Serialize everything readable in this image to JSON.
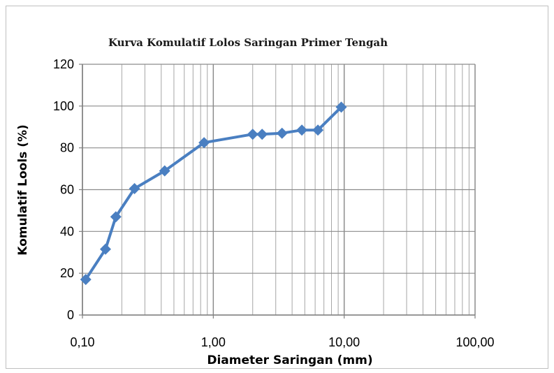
{
  "chart_data": {
    "type": "line",
    "title": "Kurva Komulatif Lolos Saringan Primer Tengah",
    "xlabel": "Diameter Saringan  (mm)",
    "ylabel": "Komulatif Lools (%)",
    "x_scale": "log",
    "xlim": [
      0.1,
      100
    ],
    "ylim": [
      0,
      120
    ],
    "x_ticks": [
      0.1,
      1,
      10,
      100
    ],
    "x_tick_labels": [
      "0,10",
      "1,00",
      "10,00",
      "100,00"
    ],
    "y_ticks": [
      0,
      20,
      40,
      60,
      80,
      100,
      120
    ],
    "y_tick_labels": [
      "0",
      "20",
      "40",
      "60",
      "80",
      "100",
      "120"
    ],
    "grid": true,
    "legend": "none",
    "series": [
      {
        "color": "#4a7fc1",
        "marker": "diamond",
        "x": [
          0.106,
          0.15,
          0.18,
          0.25,
          0.425,
          0.85,
          2.0,
          2.36,
          3.35,
          4.75,
          6.3,
          9.5
        ],
        "y": [
          17,
          31.5,
          47,
          60.5,
          69,
          82.5,
          86.5,
          86.5,
          87,
          88.5,
          88.5,
          99.5
        ]
      }
    ],
    "grid_color": "#a6a6a6",
    "axis_color": "#808080"
  }
}
